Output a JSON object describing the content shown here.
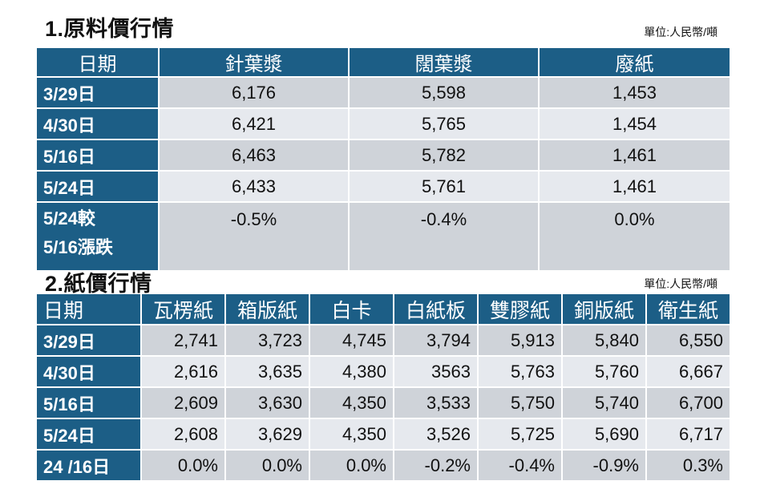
{
  "section1": {
    "title": "1.原料價行情",
    "unit": "單位:人民幣/噸",
    "headers": [
      "日期",
      "針葉漿",
      "闊葉漿",
      "廢紙"
    ],
    "rows": [
      {
        "date": "3/29日",
        "values": [
          "6,176",
          "5,598",
          "1,453"
        ]
      },
      {
        "date": "4/30日",
        "values": [
          "6,421",
          "5,765",
          "1,454"
        ]
      },
      {
        "date": "5/16日",
        "values": [
          "6,463",
          "5,782",
          "1,461"
        ]
      },
      {
        "date": "5/24日",
        "values": [
          "6,433",
          "5,761",
          "1,461"
        ]
      }
    ],
    "change_row": {
      "label_line1": "5/24較",
      "label_line2": "5/16漲跌",
      "values": [
        "-0.5%",
        "-0.4%",
        "0.0%"
      ]
    }
  },
  "section2": {
    "title": "2.紙價行情",
    "unit": "單位:人民幣/噸",
    "headers": [
      "日期",
      "瓦楞紙",
      "箱版紙",
      "白卡",
      "白紙板",
      "雙膠紙",
      "銅版紙",
      "衛生紙"
    ],
    "rows": [
      {
        "date": "3/29日",
        "values": [
          "2,741",
          "3,723",
          "4,745",
          "3,794",
          "5,913",
          "5,840",
          "6,550"
        ]
      },
      {
        "date": "4/30日",
        "values": [
          "2,616",
          "3,635",
          "4,380",
          "3563",
          "5,763",
          "5,760",
          "6,667"
        ]
      },
      {
        "date": "5/16日",
        "values": [
          "2,609",
          "3,630",
          "4,350",
          "3,533",
          "5,750",
          "5,740",
          "6,700"
        ]
      },
      {
        "date": "5/24日",
        "values": [
          "2,608",
          "3,629",
          "4,350",
          "3,526",
          "5,725",
          "5,690",
          "6,717"
        ]
      },
      {
        "date": "24 /16日",
        "values": [
          "0.0%",
          "0.0%",
          "0.0%",
          "-0.2%",
          "-0.4%",
          "-0.9%",
          "0.3%"
        ]
      }
    ]
  }
}
